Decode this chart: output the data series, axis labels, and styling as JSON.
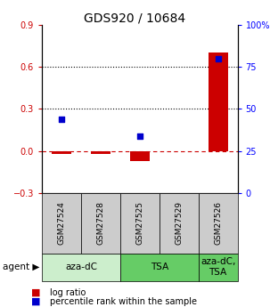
{
  "title": "GDS920 / 10684",
  "samples": [
    "GSM27524",
    "GSM27528",
    "GSM27525",
    "GSM27529",
    "GSM27526"
  ],
  "log_ratios": [
    -0.02,
    -0.02,
    -0.07,
    0.0,
    0.7
  ],
  "percentile_ranks": [
    44,
    null,
    34,
    null,
    80
  ],
  "ylim_left": [
    -0.3,
    0.9
  ],
  "ylim_right": [
    0,
    100
  ],
  "yticks_left": [
    -0.3,
    0.0,
    0.3,
    0.6,
    0.9
  ],
  "yticks_right": [
    0,
    25,
    50,
    75,
    100
  ],
  "hlines_dotted": [
    0.3,
    0.6
  ],
  "hline_dashed": 0.0,
  "bar_color": "#cc0000",
  "dot_color": "#0000cc",
  "bar_width": 0.5,
  "sample_box_color": "#cccccc",
  "agent_groups": [
    {
      "label": "aza-dC",
      "start": 0,
      "end": 2,
      "color": "#cceecc"
    },
    {
      "label": "TSA",
      "start": 2,
      "end": 4,
      "color": "#66cc66"
    },
    {
      "label": "aza-dC,\nTSA",
      "start": 4,
      "end": 5,
      "color": "#66cc66"
    }
  ],
  "legend_red": "log ratio",
  "legend_blue": "percentile rank within the sample",
  "title_fontsize": 10,
  "tick_fontsize": 7,
  "sample_label_fontsize": 6.5,
  "agent_fontsize": 7.5,
  "legend_fontsize": 7
}
